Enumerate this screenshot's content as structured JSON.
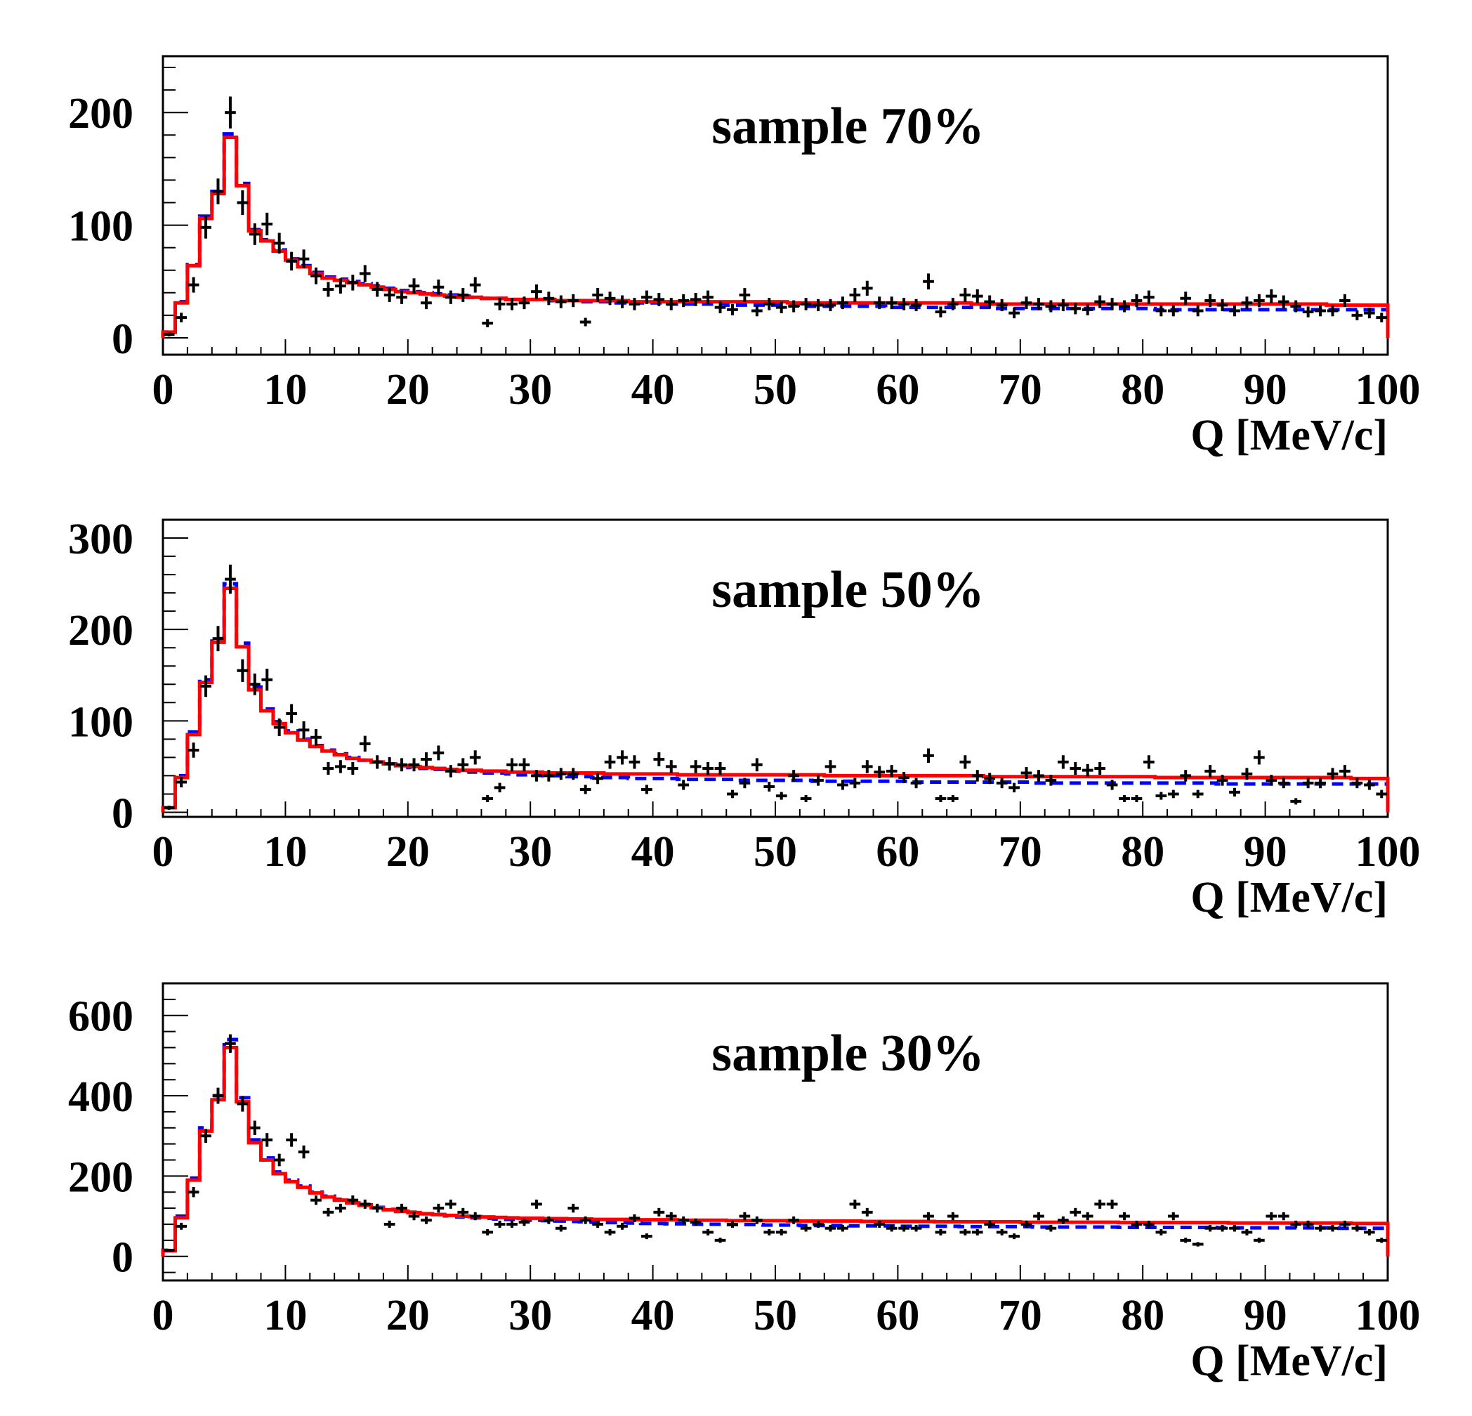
{
  "chart_data": [
    {
      "type": "histogram",
      "title": "sample 70%",
      "xlabel": "Q [MeV/c]",
      "ylabel": "",
      "xlim": [
        0,
        100
      ],
      "ylim": [
        -15,
        250
      ],
      "x_ticks": [
        "0",
        "10",
        "20",
        "30",
        "40",
        "50",
        "60",
        "70",
        "80",
        "90",
        "100"
      ],
      "y_ticks": [
        "0",
        "100",
        "200"
      ],
      "bin_width": 1,
      "series": [
        {
          "name": "data",
          "style": "points-with-error-bars",
          "color": "#000000",
          "values": [
            3,
            18,
            47,
            98,
            130,
            200,
            120,
            92,
            101,
            84,
            68,
            70,
            55,
            43,
            46,
            49,
            57,
            43,
            38,
            36,
            46,
            31,
            45,
            36,
            38,
            47,
            13,
            30,
            30,
            31,
            41,
            35,
            32,
            33,
            14,
            38,
            35,
            32,
            30,
            36,
            34,
            30,
            33,
            34,
            36,
            27,
            25,
            38,
            24,
            30,
            27,
            28,
            30,
            29,
            29,
            31,
            38,
            44,
            31,
            31,
            30,
            29,
            50,
            23,
            30,
            38,
            37,
            32,
            29,
            22,
            31,
            30,
            28,
            29,
            26,
            25,
            32,
            30,
            28,
            33,
            36,
            24,
            24,
            35,
            24,
            33,
            29,
            24,
            31,
            33,
            37,
            32,
            28,
            23,
            24,
            24,
            33,
            20,
            22,
            18
          ]
        },
        {
          "name": "fit-blue-dashed",
          "style": "dashed-step",
          "color": "#0000ff",
          "values": [
            5,
            32,
            65,
            108,
            130,
            181,
            137,
            96,
            87,
            78,
            70,
            64,
            58,
            54,
            52,
            50,
            48,
            46,
            44,
            42,
            41,
            40,
            39,
            38,
            37,
            36,
            35,
            35,
            34,
            34,
            34,
            33,
            33,
            33,
            32,
            32,
            32,
            31,
            31,
            31,
            31,
            30,
            30,
            30,
            30,
            30,
            29,
            29,
            29,
            29,
            29,
            29,
            28,
            28,
            28,
            28,
            28,
            28,
            28,
            27,
            27,
            27,
            27,
            27,
            27,
            27,
            27,
            27,
            26,
            26,
            26,
            26,
            26,
            26,
            26,
            26,
            26,
            26,
            26,
            26,
            26,
            25,
            25,
            25,
            25,
            25,
            25,
            25,
            25,
            25,
            25,
            25,
            25,
            25,
            25,
            25,
            25,
            25,
            25,
            25
          ]
        },
        {
          "name": "fit-red-solid",
          "style": "solid-step",
          "color": "#ff0000",
          "values": [
            5,
            31,
            64,
            106,
            128,
            178,
            135,
            95,
            86,
            77,
            69,
            63,
            57,
            53,
            51,
            49,
            47,
            45,
            43,
            41,
            40,
            39,
            38,
            37,
            36,
            36,
            35,
            35,
            34,
            34,
            34,
            34,
            33,
            33,
            33,
            33,
            33,
            33,
            32,
            32,
            32,
            32,
            32,
            32,
            32,
            32,
            32,
            32,
            32,
            32,
            32,
            31,
            31,
            31,
            31,
            31,
            31,
            31,
            31,
            31,
            31,
            31,
            31,
            31,
            31,
            31,
            30,
            30,
            30,
            30,
            30,
            30,
            30,
            30,
            30,
            30,
            30,
            30,
            30,
            30,
            30,
            30,
            30,
            30,
            30,
            30,
            30,
            30,
            30,
            30,
            30,
            30,
            30,
            30,
            30,
            29,
            29,
            29,
            29,
            29
          ]
        }
      ]
    },
    {
      "type": "histogram",
      "title": "sample 50%",
      "xlabel": "Q [MeV/c]",
      "ylabel": "",
      "xlim": [
        0,
        100
      ],
      "ylim": [
        -5,
        320
      ],
      "x_ticks": [
        "0",
        "10",
        "20",
        "30",
        "40",
        "50",
        "60",
        "70",
        "80",
        "90",
        "100"
      ],
      "y_ticks": [
        "0",
        "100",
        "200",
        "300"
      ],
      "bin_width": 1,
      "series": [
        {
          "name": "data",
          "style": "points-with-error-bars",
          "color": "#000000",
          "values": [
            5,
            33,
            68,
            138,
            190,
            255,
            155,
            140,
            145,
            93,
            108,
            90,
            82,
            48,
            50,
            48,
            75,
            55,
            53,
            52,
            52,
            58,
            65,
            45,
            52,
            60,
            15,
            27,
            52,
            52,
            40,
            40,
            42,
            42,
            25,
            37,
            55,
            60,
            55,
            25,
            58,
            50,
            30,
            50,
            48,
            48,
            20,
            32,
            52,
            28,
            18,
            40,
            15,
            35,
            50,
            30,
            32,
            50,
            44,
            45,
            38,
            32,
            62,
            15,
            15,
            55,
            40,
            37,
            32,
            27,
            43,
            40,
            35,
            55,
            48,
            46,
            48,
            30,
            15,
            15,
            55,
            18,
            20,
            40,
            20,
            45,
            35,
            22,
            42,
            60,
            35,
            32,
            12,
            32,
            32,
            42,
            45,
            32,
            30,
            20
          ]
        },
        {
          "name": "fit-blue-dashed",
          "style": "dashed-step",
          "color": "#0000ff",
          "values": [
            5,
            40,
            88,
            145,
            190,
            250,
            185,
            137,
            113,
            99,
            89,
            80,
            73,
            68,
            64,
            60,
            57,
            55,
            53,
            51,
            49,
            48,
            47,
            46,
            45,
            44,
            43,
            43,
            42,
            41,
            41,
            40,
            40,
            39,
            39,
            38,
            38,
            38,
            37,
            37,
            37,
            37,
            36,
            36,
            36,
            36,
            36,
            35,
            35,
            35,
            35,
            35,
            35,
            34,
            34,
            34,
            34,
            34,
            34,
            34,
            34,
            33,
            33,
            33,
            33,
            33,
            33,
            33,
            33,
            33,
            33,
            32,
            32,
            32,
            32,
            32,
            32,
            32,
            32,
            32,
            32,
            32,
            32,
            32,
            32,
            32,
            31,
            31,
            31,
            31,
            31,
            31,
            31,
            31,
            31,
            31,
            31,
            31,
            31,
            31
          ]
        },
        {
          "name": "fit-red-solid",
          "style": "solid-step",
          "color": "#ff0000",
          "values": [
            5,
            38,
            85,
            142,
            186,
            245,
            181,
            134,
            111,
            97,
            87,
            79,
            72,
            67,
            63,
            59,
            57,
            55,
            53,
            51,
            50,
            49,
            48,
            47,
            46,
            46,
            45,
            45,
            44,
            44,
            44,
            43,
            43,
            43,
            43,
            43,
            42,
            42,
            42,
            42,
            42,
            42,
            41,
            41,
            41,
            41,
            41,
            41,
            41,
            41,
            41,
            41,
            41,
            41,
            40,
            40,
            40,
            40,
            40,
            40,
            40,
            40,
            40,
            40,
            40,
            40,
            40,
            39,
            39,
            39,
            39,
            39,
            39,
            39,
            39,
            39,
            39,
            39,
            39,
            39,
            39,
            38,
            38,
            38,
            38,
            38,
            38,
            38,
            38,
            38,
            38,
            38,
            38,
            38,
            38,
            38,
            38,
            37,
            37,
            37
          ]
        }
      ]
    },
    {
      "type": "histogram",
      "title": "sample 30%",
      "xlabel": "Q [MeV/c]",
      "ylabel": "",
      "xlim": [
        0,
        100
      ],
      "ylim": [
        -60,
        680
      ],
      "x_ticks": [
        "0",
        "10",
        "20",
        "30",
        "40",
        "50",
        "60",
        "70",
        "80",
        "90",
        "100"
      ],
      "y_ticks": [
        "0",
        "200",
        "400",
        "600"
      ],
      "bin_width": 1,
      "series": [
        {
          "name": "data",
          "style": "points-with-error-bars",
          "color": "#000000",
          "values": [
            15,
            75,
            160,
            300,
            400,
            530,
            380,
            320,
            290,
            240,
            290,
            260,
            140,
            110,
            120,
            140,
            130,
            120,
            80,
            120,
            100,
            90,
            120,
            130,
            110,
            100,
            60,
            80,
            80,
            85,
            130,
            90,
            70,
            120,
            90,
            80,
            60,
            75,
            95,
            50,
            110,
            100,
            90,
            85,
            60,
            40,
            80,
            100,
            90,
            60,
            60,
            90,
            70,
            80,
            70,
            70,
            130,
            110,
            80,
            70,
            70,
            70,
            100,
            60,
            100,
            60,
            60,
            80,
            60,
            50,
            80,
            100,
            70,
            90,
            110,
            100,
            130,
            130,
            100,
            80,
            80,
            60,
            100,
            40,
            30,
            70,
            70,
            70,
            60,
            40,
            100,
            100,
            80,
            80,
            70,
            70,
            80,
            70,
            60,
            40
          ]
        },
        {
          "name": "fit-blue-dashed",
          "style": "dashed-step",
          "color": "#0000ff",
          "values": [
            15,
            100,
            195,
            320,
            400,
            540,
            395,
            290,
            245,
            210,
            190,
            175,
            160,
            150,
            142,
            135,
            128,
            122,
            117,
            112,
            110,
            106,
            104,
            101,
            98,
            96,
            95,
            93,
            92,
            91,
            90,
            89,
            88,
            87,
            86,
            85,
            84,
            84,
            83,
            82,
            82,
            81,
            81,
            80,
            80,
            80,
            79,
            79,
            79,
            78,
            78,
            78,
            77,
            77,
            77,
            77,
            76,
            76,
            76,
            76,
            75,
            75,
            75,
            75,
            75,
            74,
            74,
            74,
            74,
            74,
            74,
            73,
            73,
            73,
            73,
            73,
            73,
            73,
            72,
            72,
            72,
            72,
            72,
            72,
            72,
            72,
            71,
            71,
            71,
            71,
            71,
            71,
            71,
            71,
            71,
            71,
            70,
            70,
            70,
            70
          ]
        },
        {
          "name": "fit-red-solid",
          "style": "solid-step",
          "color": "#ff0000",
          "values": [
            14,
            96,
            190,
            312,
            390,
            520,
            385,
            283,
            240,
            206,
            186,
            172,
            158,
            148,
            140,
            133,
            127,
            121,
            116,
            112,
            109,
            106,
            104,
            102,
            100,
            99,
            98,
            97,
            96,
            95,
            95,
            94,
            94,
            93,
            93,
            92,
            92,
            92,
            91,
            91,
            91,
            91,
            90,
            90,
            90,
            90,
            89,
            89,
            89,
            89,
            89,
            88,
            88,
            88,
            88,
            88,
            88,
            87,
            87,
            87,
            87,
            87,
            87,
            86,
            86,
            86,
            86,
            86,
            86,
            86,
            85,
            85,
            85,
            85,
            85,
            85,
            85,
            85,
            84,
            84,
            84,
            84,
            84,
            84,
            84,
            84,
            84,
            83,
            83,
            83,
            83,
            83,
            83,
            83,
            83,
            83,
            83,
            82,
            82,
            82
          ]
        }
      ]
    }
  ]
}
